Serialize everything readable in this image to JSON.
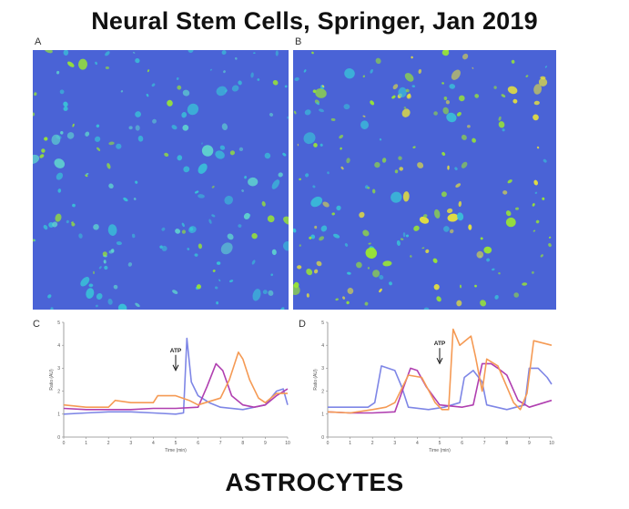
{
  "title": "Neural Stem Cells, Springer, Jan 2019",
  "caption": "ASTROCYTES",
  "panels": {
    "a": {
      "label": "A"
    },
    "b": {
      "label": "B"
    },
    "c": {
      "label": "C"
    },
    "d": {
      "label": "D"
    }
  },
  "colors": {
    "micrograph_background": "#4a63d6",
    "cell_cyan": "#38c4d8",
    "cell_green": "#9be830",
    "cell_yellow": "#e8e23a",
    "series_blue": "#7e86e6",
    "series_purple": "#b03fb0",
    "series_orange": "#f59a54"
  },
  "chart_data": [
    {
      "type": "line",
      "panel": "C",
      "xlabel": "Time (min)",
      "ylabel": "Ratio (AU)",
      "xlim": [
        0,
        10
      ],
      "ylim": [
        0,
        5
      ],
      "xticks": [
        "0",
        "1",
        "2",
        "3",
        "4",
        "5",
        "6",
        "7",
        "8",
        "9",
        "10"
      ],
      "yticks": [
        "0",
        "1",
        "2",
        "3",
        "4",
        "5"
      ],
      "annotation": {
        "text": "ATP",
        "x": 5.0,
        "y": 3.7
      },
      "series": [
        {
          "color": "#7e86e6",
          "points": [
            [
              0,
              1.0
            ],
            [
              1,
              1.05
            ],
            [
              2,
              1.1
            ],
            [
              3,
              1.1
            ],
            [
              4,
              1.05
            ],
            [
              5,
              1.0
            ],
            [
              5.35,
              1.05
            ],
            [
              5.5,
              4.3
            ],
            [
              5.7,
              2.4
            ],
            [
              6.0,
              1.8
            ],
            [
              6.5,
              1.5
            ],
            [
              7,
              1.3
            ],
            [
              8,
              1.2
            ],
            [
              9,
              1.4
            ],
            [
              9.5,
              2.0
            ],
            [
              9.8,
              2.1
            ],
            [
              10,
              1.4
            ]
          ]
        },
        {
          "color": "#b03fb0",
          "points": [
            [
              0,
              1.25
            ],
            [
              1,
              1.2
            ],
            [
              2,
              1.2
            ],
            [
              3,
              1.2
            ],
            [
              4,
              1.25
            ],
            [
              5,
              1.25
            ],
            [
              6,
              1.3
            ],
            [
              6.4,
              2.2
            ],
            [
              6.8,
              3.2
            ],
            [
              7.1,
              2.9
            ],
            [
              7.5,
              1.8
            ],
            [
              8,
              1.4
            ],
            [
              8.5,
              1.3
            ],
            [
              9,
              1.4
            ],
            [
              9.5,
              1.8
            ],
            [
              10,
              2.1
            ]
          ]
        },
        {
          "color": "#f59a54",
          "points": [
            [
              0,
              1.4
            ],
            [
              1,
              1.3
            ],
            [
              2,
              1.3
            ],
            [
              2.3,
              1.6
            ],
            [
              3,
              1.5
            ],
            [
              4,
              1.5
            ],
            [
              4.2,
              1.8
            ],
            [
              5,
              1.8
            ],
            [
              5.6,
              1.6
            ],
            [
              6,
              1.4
            ],
            [
              7,
              1.7
            ],
            [
              7.4,
              2.5
            ],
            [
              7.8,
              3.7
            ],
            [
              8.0,
              3.4
            ],
            [
              8.3,
              2.5
            ],
            [
              8.7,
              1.7
            ],
            [
              9,
              1.5
            ],
            [
              9.5,
              1.9
            ],
            [
              10,
              1.9
            ]
          ]
        }
      ]
    },
    {
      "type": "line",
      "panel": "D",
      "xlabel": "Time (min)",
      "ylabel": "Ratio (AU)",
      "xlim": [
        0,
        10
      ],
      "ylim": [
        0,
        5
      ],
      "xticks": [
        "0",
        "1",
        "2",
        "3",
        "4",
        "5",
        "6",
        "7",
        "8",
        "9",
        "10"
      ],
      "yticks": [
        "0",
        "1",
        "2",
        "3",
        "4",
        "5"
      ],
      "annotation": {
        "text": "ATP",
        "x": 5.0,
        "y": 4.0
      },
      "series": [
        {
          "color": "#7e86e6",
          "points": [
            [
              0,
              1.3
            ],
            [
              1,
              1.3
            ],
            [
              1.8,
              1.3
            ],
            [
              2.1,
              1.5
            ],
            [
              2.4,
              3.1
            ],
            [
              3,
              2.9
            ],
            [
              3.3,
              2.2
            ],
            [
              3.6,
              1.3
            ],
            [
              4.5,
              1.2
            ],
            [
              5.2,
              1.3
            ],
            [
              5.9,
              1.5
            ],
            [
              6.1,
              2.6
            ],
            [
              6.5,
              2.9
            ],
            [
              6.9,
              2.4
            ],
            [
              7.1,
              1.4
            ],
            [
              8,
              1.2
            ],
            [
              8.8,
              1.4
            ],
            [
              9.0,
              3.0
            ],
            [
              9.4,
              3.0
            ],
            [
              9.8,
              2.6
            ],
            [
              10,
              2.3
            ]
          ]
        },
        {
          "color": "#b03fb0",
          "points": [
            [
              0,
              1.1
            ],
            [
              1,
              1.05
            ],
            [
              2,
              1.05
            ],
            [
              3,
              1.1
            ],
            [
              3.4,
              2.2
            ],
            [
              3.7,
              3.0
            ],
            [
              4,
              2.9
            ],
            [
              4.4,
              2.2
            ],
            [
              5,
              1.4
            ],
            [
              6,
              1.3
            ],
            [
              6.5,
              1.4
            ],
            [
              6.9,
              3.2
            ],
            [
              7.3,
              3.2
            ],
            [
              7.6,
              3.0
            ],
            [
              8,
              2.7
            ],
            [
              8.5,
              1.6
            ],
            [
              9,
              1.3
            ],
            [
              10,
              1.6
            ]
          ]
        },
        {
          "color": "#f59a54",
          "points": [
            [
              0,
              1.1
            ],
            [
              1,
              1.05
            ],
            [
              2,
              1.2
            ],
            [
              2.6,
              1.3
            ],
            [
              3,
              1.5
            ],
            [
              3.6,
              2.7
            ],
            [
              4.2,
              2.6
            ],
            [
              4.8,
              1.5
            ],
            [
              5.1,
              1.2
            ],
            [
              5.4,
              1.2
            ],
            [
              5.6,
              4.7
            ],
            [
              5.9,
              4.0
            ],
            [
              6.4,
              4.4
            ],
            [
              6.6,
              3.5
            ],
            [
              6.9,
              2.0
            ],
            [
              7.1,
              3.4
            ],
            [
              7.6,
              3.1
            ],
            [
              8.3,
              1.5
            ],
            [
              8.6,
              1.2
            ],
            [
              8.9,
              1.9
            ],
            [
              9.2,
              4.2
            ],
            [
              9.6,
              4.1
            ],
            [
              10,
              4.0
            ]
          ]
        }
      ]
    }
  ]
}
